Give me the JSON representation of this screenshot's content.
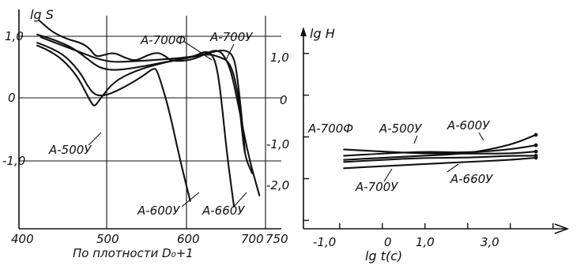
{
  "chart_data": [
    {
      "type": "line",
      "ylabel": "lg S",
      "xlabel": "По плотности D₀+1",
      "xlim": [
        400,
        760
      ],
      "ylim": [
        -2.7,
        1.25
      ],
      "x_ticks": [
        "400",
        "500",
        "600",
        "700",
        "750"
      ],
      "y_ticks": [
        "1,0",
        "0",
        "-1,0"
      ],
      "grid": true,
      "series": [
        {
          "name": "А-500У",
          "x": [
            425,
            440,
            460,
            480,
            492,
            500,
            504,
            512,
            530,
            560,
            600,
            640,
            660,
            675,
            690,
            700,
            705,
            710,
            720
          ],
          "y": [
            0.6,
            0.52,
            0.35,
            0.05,
            -0.25,
            -0.45,
            -0.5,
            -0.35,
            -0.05,
            0.15,
            0.3,
            0.4,
            0.45,
            0.4,
            0.3,
            -0.2,
            -0.8,
            -1.4,
            -1.7
          ]
        },
        {
          "name": "А-600У",
          "x": [
            425,
            445,
            465,
            485,
            495,
            505,
            520,
            545,
            570,
            585,
            590,
            605,
            620,
            635
          ],
          "y": [
            0.65,
            0.55,
            0.4,
            0.1,
            -0.15,
            -0.3,
            -0.3,
            -0.15,
            0.05,
            0.2,
            0.15,
            -0.5,
            -1.4,
            -2.2
          ]
        },
        {
          "name": "А-660У",
          "x": [
            425,
            450,
            475,
            495,
            510,
            530,
            560,
            600,
            640,
            655,
            665,
            672,
            678,
            685,
            695
          ],
          "y": [
            0.8,
            0.7,
            0.55,
            0.35,
            0.2,
            0.15,
            0.2,
            0.3,
            0.4,
            0.5,
            0.45,
            0.2,
            -0.4,
            -1.3,
            -2.3
          ]
        },
        {
          "name": "А-700Ф",
          "x": [
            428,
            445,
            465,
            485,
            497,
            505,
            515,
            530,
            545,
            560,
            575,
            590,
            600,
            608,
            620,
            640,
            660,
            672,
            680,
            690,
            700,
            715,
            730
          ],
          "y": [
            1.05,
            0.85,
            0.72,
            0.65,
            0.55,
            0.4,
            0.42,
            0.48,
            0.38,
            0.32,
            0.42,
            0.48,
            0.42,
            0.33,
            0.32,
            0.35,
            0.48,
            0.52,
            0.45,
            0.2,
            -0.4,
            -1.4,
            -2.1
          ]
        },
        {
          "name": "А-700У",
          "x": [
            430,
            460,
            490,
            510,
            530,
            560,
            600,
            640,
            670,
            685,
            695,
            700,
            705,
            710
          ],
          "y": [
            0.75,
            0.6,
            0.45,
            0.35,
            0.3,
            0.32,
            0.35,
            0.4,
            0.5,
            0.52,
            0.4,
            0.0,
            -0.6,
            -1.3
          ]
        }
      ]
    },
    {
      "type": "line",
      "ylabel": "lg H",
      "xlabel": "lg t(c)",
      "xlim": [
        -1.85,
        4.3
      ],
      "ylim": [
        -3.2,
        1.75
      ],
      "x_ticks": [
        "-1,0",
        "0",
        "1,0",
        "3,0"
      ],
      "y_ticks": [
        "1,0",
        "0",
        "-1,0",
        "-2,0"
      ],
      "grid": false,
      "series": [
        {
          "name": "А-700Ф",
          "x": [
            -0.9,
            0,
            1,
            2,
            3,
            3.6
          ],
          "y": [
            -1.3,
            -1.35,
            -1.4,
            -1.4,
            -1.4,
            -1.35
          ]
        },
        {
          "name": "А-500У",
          "x": [
            -0.9,
            0,
            1,
            2,
            3,
            3.6
          ],
          "y": [
            -1.45,
            -1.4,
            -1.35,
            -1.38,
            -1.3,
            -1.2
          ]
        },
        {
          "name": "А-600У",
          "x": [
            -0.9,
            0,
            1,
            2,
            3,
            3.6
          ],
          "y": [
            -1.55,
            -1.5,
            -1.45,
            -1.4,
            -1.2,
            -0.95
          ]
        },
        {
          "name": "А-660У",
          "x": [
            -0.9,
            0,
            1,
            2,
            3,
            3.6
          ],
          "y": [
            -1.6,
            -1.55,
            -1.5,
            -1.5,
            -1.45,
            -1.45
          ]
        },
        {
          "name": "А-700У",
          "x": [
            -0.9,
            0,
            1,
            2,
            3,
            3.6
          ],
          "y": [
            -1.75,
            -1.7,
            -1.65,
            -1.6,
            -1.55,
            -1.5
          ]
        }
      ]
    }
  ]
}
